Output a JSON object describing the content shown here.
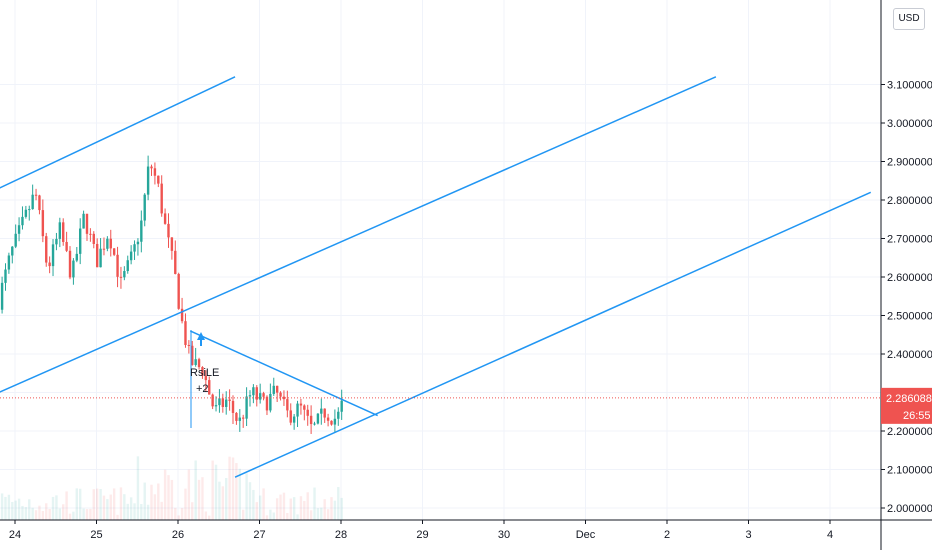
{
  "instrument": {
    "currency": "USD"
  },
  "price_scale": {
    "ticks": [
      "3.1000000",
      "3.0000000",
      "2.9000000",
      "2.8000000",
      "2.7000000",
      "2.6000000",
      "2.5000000",
      "2.4000000",
      "2.3000000",
      "2.2000000",
      "2.1000000",
      "2.0000000"
    ],
    "last_price": "2.2860883",
    "countdown": "26:55"
  },
  "time_scale": {
    "ticks": [
      "24",
      "25",
      "26",
      "27",
      "28",
      "29",
      "30",
      "Dec",
      "2",
      "3",
      "4"
    ]
  },
  "strategy_signal": {
    "name": "RsiLE",
    "qty": "+2"
  },
  "colors": {
    "up": "#26a69a",
    "down": "#ef5350",
    "trendline": "#2196f3",
    "price_badge": "#ef5350",
    "grid": "#f0f3fa",
    "axis": "#131722"
  },
  "chart_data": {
    "type": "candlestick",
    "y_axis_unit": "USD",
    "ylim": [
      1.98,
      3.11
    ],
    "x_axis": [
      "24",
      "25",
      "26",
      "27",
      "28",
      "29",
      "30",
      "Dec",
      "2",
      "3",
      "4"
    ],
    "last_price": 2.2860883,
    "grid": true,
    "price_path": [
      [
        "23.8",
        2.54
      ],
      [
        "23.95",
        2.66
      ],
      [
        "24.1",
        2.74
      ],
      [
        "24.25",
        2.82
      ],
      [
        "24.4",
        2.62
      ],
      [
        "24.55",
        2.72
      ],
      [
        "24.7",
        2.6
      ],
      [
        "24.85",
        2.76
      ],
      [
        "25.0",
        2.64
      ],
      [
        "25.15",
        2.72
      ],
      [
        "25.3",
        2.58
      ],
      [
        "25.45",
        2.66
      ],
      [
        "25.55",
        2.74
      ],
      [
        "25.65",
        2.9
      ],
      [
        "25.75",
        2.84
      ],
      [
        "25.85",
        2.72
      ],
      [
        "25.95",
        2.62
      ],
      [
        "26.05",
        2.48
      ],
      [
        "26.15",
        2.38
      ],
      [
        "26.3",
        2.36
      ],
      [
        "26.45",
        2.25
      ],
      [
        "26.6",
        2.28
      ],
      [
        "26.75",
        2.22
      ],
      [
        "26.9",
        2.3
      ],
      [
        "27.05",
        2.27
      ],
      [
        "27.2",
        2.3
      ],
      [
        "27.35",
        2.24
      ],
      [
        "27.5",
        2.26
      ],
      [
        "27.65",
        2.2
      ],
      [
        "27.8",
        2.25
      ],
      [
        "27.95",
        2.23
      ],
      [
        "28.05",
        2.29
      ]
    ],
    "trendlines": [
      {
        "from": [
          "23.8",
          2.83
        ],
        "to": [
          "26.7",
          3.12
        ]
      },
      {
        "from": [
          "23.8",
          2.3
        ],
        "to": [
          "32.6",
          3.12
        ]
      },
      {
        "from": [
          "26.15",
          2.46
        ],
        "to": [
          "28.45",
          2.24
        ]
      },
      {
        "from": [
          "26.7",
          2.08
        ],
        "to": [
          "34.5",
          2.82
        ]
      }
    ]
  }
}
